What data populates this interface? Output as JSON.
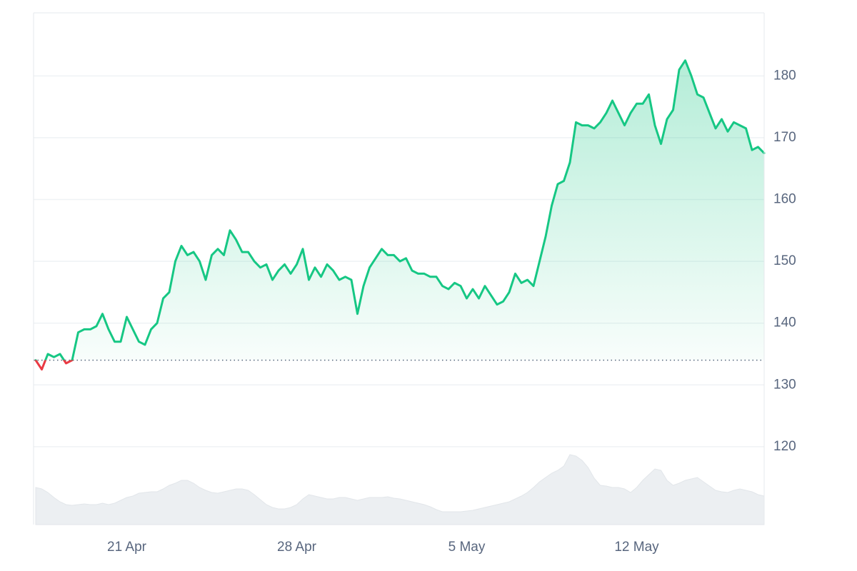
{
  "chart_data": {
    "type": "line",
    "categories": [
      null,
      null,
      null,
      null,
      null,
      null,
      null,
      null,
      null,
      null,
      null,
      null,
      null,
      null,
      null,
      "21 Apr",
      null,
      null,
      null,
      null,
      null,
      null,
      null,
      null,
      null,
      null,
      null,
      null,
      null,
      null,
      null,
      null,
      null,
      null,
      null,
      null,
      null,
      null,
      null,
      null,
      null,
      null,
      null,
      "28 Apr",
      null,
      null,
      null,
      null,
      null,
      null,
      null,
      null,
      null,
      null,
      null,
      null,
      null,
      null,
      null,
      null,
      null,
      null,
      null,
      null,
      null,
      null,
      null,
      null,
      null,
      null,
      null,
      "5 May",
      null,
      null,
      null,
      null,
      null,
      null,
      null,
      null,
      null,
      null,
      null,
      null,
      null,
      null,
      null,
      null,
      null,
      null,
      null,
      null,
      null,
      null,
      null,
      null,
      null,
      null,
      null,
      "12 May",
      null,
      null,
      null,
      null,
      null,
      null,
      null,
      null,
      null,
      null,
      null,
      null,
      null,
      null,
      null,
      null,
      null,
      null,
      null,
      null,
      null
    ],
    "series": [
      {
        "color": "#16c784",
        "negative_color": "#ea3943",
        "values": [
          134,
          132.5,
          135,
          134.5,
          135,
          133.5,
          134,
          138.5,
          139,
          139,
          139.5,
          141.5,
          139,
          137,
          137,
          141,
          139,
          137,
          136.5,
          139,
          140,
          144,
          145,
          150,
          152.5,
          151,
          151.5,
          150,
          147,
          151,
          152,
          151,
          155,
          153.5,
          151.5,
          151.5,
          150,
          149,
          149.5,
          147,
          148.5,
          149.5,
          148,
          149.5,
          152,
          147,
          149,
          147.5,
          149.5,
          148.5,
          147,
          147.5,
          147,
          141.5,
          146,
          149,
          150.5,
          152,
          151,
          151,
          150,
          150.5,
          148.5,
          148,
          148,
          147.5,
          147.5,
          146,
          145.5,
          146.5,
          146,
          144,
          145.5,
          144,
          146,
          144.5,
          143,
          143.5,
          145,
          148,
          146.5,
          147,
          146,
          150,
          154,
          159,
          162.5,
          163,
          166,
          172.5,
          172,
          172,
          171.5,
          172.5,
          174,
          176,
          174,
          172,
          174,
          175.5,
          175.5,
          177,
          172,
          169,
          173,
          174.5,
          181,
          182.5,
          180,
          177,
          176.5,
          174,
          171.5,
          173,
          171,
          172.5,
          172,
          171.5,
          168,
          168.5,
          167.5
        ]
      },
      {
        "axis": "y2",
        "color": "#eceff2",
        "values": [
          52,
          50,
          45,
          38,
          32,
          28,
          27,
          28,
          29,
          28,
          28,
          30,
          28,
          30,
          34,
          38,
          40,
          44,
          45,
          46,
          46,
          50,
          55,
          58,
          62,
          62,
          58,
          52,
          48,
          45,
          44,
          46,
          48,
          50,
          50,
          48,
          42,
          35,
          28,
          24,
          22,
          22,
          24,
          28,
          36,
          42,
          40,
          38,
          36,
          36,
          38,
          38,
          36,
          34,
          36,
          38,
          38,
          38,
          39,
          37,
          36,
          34,
          32,
          30,
          28,
          25,
          21,
          18,
          18,
          18,
          18,
          19,
          20,
          22,
          24,
          26,
          28,
          30,
          32,
          36,
          40,
          45,
          52,
          60,
          66,
          72,
          76,
          82,
          98,
          96,
          90,
          80,
          65,
          55,
          54,
          52,
          52,
          50,
          45,
          52,
          62,
          70,
          78,
          76,
          62,
          55,
          58,
          62,
          64,
          66,
          60,
          54,
          48,
          46,
          45,
          48,
          50,
          48,
          46,
          42,
          40
        ]
      }
    ],
    "ylim": [
      107.4,
      190.2
    ],
    "yticks": [
      120,
      130,
      140,
      150,
      160,
      170,
      180
    ],
    "y2lim": [
      0,
      100
    ],
    "baseline": 134,
    "grid": true
  }
}
